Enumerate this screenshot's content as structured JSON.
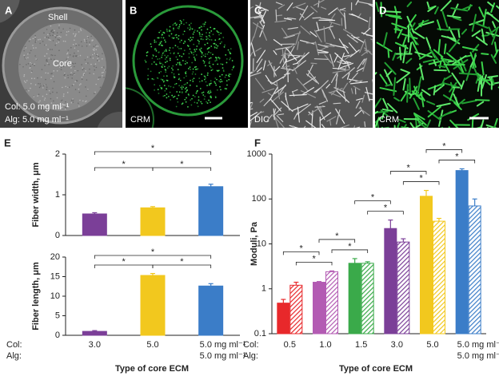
{
  "panels": [
    {
      "label": "A",
      "texts": [
        "Shell",
        "Core",
        "Col: 5.0 mg ml⁻¹",
        "Alg: 5.0 mg ml⁻¹"
      ]
    },
    {
      "label": "B",
      "texts": [
        "CRM"
      ]
    },
    {
      "label": "C",
      "texts": [
        "DIC"
      ]
    },
    {
      "label": "D",
      "texts": [
        "CRM"
      ]
    }
  ],
  "chart_data": [
    {
      "type": "bar",
      "panel_label": "E",
      "ylabel": "Fiber width, μm",
      "colors": [
        "#7b3f98",
        "#f2c81e",
        "#3b7dc8"
      ],
      "series": [
        {
          "pattern": "solid",
          "values": [
            0.53,
            0.68,
            1.2
          ],
          "errors": [
            0.03,
            0.03,
            0.06
          ]
        }
      ],
      "ylim": [
        0,
        2
      ],
      "yticks": [
        0,
        1,
        2
      ],
      "brackets": [
        {
          "from": 0,
          "to": 2,
          "series": 0,
          "label": "*"
        },
        {
          "from": 0,
          "to": 1,
          "series": 0,
          "label": "*"
        },
        {
          "from": 1,
          "to": 2,
          "series": 0,
          "label": "*"
        }
      ]
    },
    {
      "type": "bar",
      "ylabel": "Fiber length, μm",
      "colors": [
        "#7b3f98",
        "#f2c81e",
        "#3b7dc8"
      ],
      "series": [
        {
          "pattern": "solid",
          "values": [
            1,
            15.3,
            12.6
          ],
          "errors": [
            0.2,
            0.5,
            0.6
          ]
        }
      ],
      "ylim": [
        0,
        20
      ],
      "yticks": [
        0,
        5,
        10,
        15,
        20
      ],
      "row_labels": [
        "Col:",
        "Alg:"
      ],
      "col": [
        "3.0",
        "5.0",
        "5.0 mg ml⁻¹"
      ],
      "alg": [
        null,
        null,
        "5.0 mg ml⁻¹"
      ],
      "xlabel": "Type of core ECM",
      "brackets": [
        {
          "from": 0,
          "to": 2,
          "series": 0,
          "label": "*"
        },
        {
          "from": 0,
          "to": 1,
          "series": 0,
          "label": "*"
        },
        {
          "from": 1,
          "to": 2,
          "series": 0,
          "label": "*"
        }
      ]
    },
    {
      "type": "bar",
      "panel_label": "F",
      "ylabel": "Moduli, Pa",
      "log_scale": true,
      "colors": [
        "#e8282b",
        "#b35bb3",
        "#3aaa4a",
        "#7b3f98",
        "#f2c81e",
        "#3b7dc8"
      ],
      "series": [
        {
          "pattern": "solid",
          "values": [
            0.48,
            1.4,
            3.7,
            22,
            115,
            430
          ],
          "errors": [
            0.1,
            0.05,
            1,
            12,
            40,
            40
          ]
        },
        {
          "pattern": "hatched",
          "values": [
            1.2,
            2.4,
            3.7,
            11,
            32,
            70
          ],
          "errors": [
            0.2,
            0.1,
            0.3,
            2,
            5,
            30
          ]
        }
      ],
      "ylim": [
        0.1,
        1000
      ],
      "yticks": [
        0.1,
        1,
        10,
        100,
        1000
      ],
      "row_labels": [
        "Col:",
        "Alg:"
      ],
      "col": [
        "0.5",
        "1.0",
        "1.5",
        "3.0",
        "5.0",
        "5.0 mg ml⁻¹"
      ],
      "alg": [
        null,
        null,
        null,
        null,
        null,
        "5.0 mg ml⁻¹"
      ],
      "xlabel": "Type of core ECM",
      "brackets": [
        {
          "from": 0,
          "to": 1,
          "series": 0,
          "label": "*"
        },
        {
          "from": 0,
          "to": 1,
          "series": 1,
          "label": "*"
        },
        {
          "from": 1,
          "to": 2,
          "series": 0,
          "label": "*"
        },
        {
          "from": 1,
          "to": 2,
          "series": 1,
          "label": "*"
        },
        {
          "from": 2,
          "to": 3,
          "series": 0,
          "label": "*"
        },
        {
          "from": 2,
          "to": 3,
          "series": 1,
          "label": "*"
        },
        {
          "from": 3,
          "to": 4,
          "series": 0,
          "label": "*"
        },
        {
          "from": 3,
          "to": 4,
          "series": 1,
          "label": "*"
        },
        {
          "from": 4,
          "to": 5,
          "series": 0,
          "label": "*"
        },
        {
          "from": 4,
          "to": 5,
          "series": 1,
          "label": "*"
        }
      ]
    }
  ]
}
